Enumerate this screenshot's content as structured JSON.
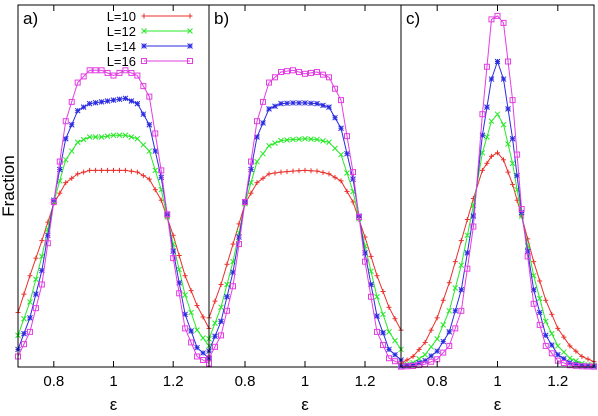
{
  "chart_data": {
    "type": "line",
    "ylabel": "Fraction",
    "legend": {
      "placement": "top-left of panel a",
      "entries": [
        {
          "label": "L=10",
          "color": "#e8302b",
          "marker": "plus"
        },
        {
          "label": "L=12",
          "color": "#27e827",
          "marker": "cross"
        },
        {
          "label": "L=14",
          "color": "#2b2be0",
          "marker": "star"
        },
        {
          "label": "L=16",
          "color": "#e23ee2",
          "marker": "square"
        }
      ]
    },
    "panels": [
      {
        "label": "a)",
        "xlabel": "ε",
        "xlim": [
          0.68,
          1.32
        ],
        "ylim": [
          0,
          1
        ],
        "xticks": [
          "0.8",
          "1",
          "1.2"
        ],
        "xtick_values": [
          0.8,
          1.0,
          1.2
        ],
        "series": [
          {
            "name": "L=10",
            "x": [
              0.68,
              0.72,
              0.76,
              0.8,
              0.84,
              0.88,
              0.92,
              0.96,
              1.0,
              1.04,
              1.08,
              1.12,
              1.16,
              1.2,
              1.24,
              1.28,
              1.32
            ],
            "y": [
              0.155,
              0.26,
              0.36,
              0.465,
              0.525,
              0.55,
              0.56,
              0.56,
              0.56,
              0.56,
              0.555,
              0.535,
              0.475,
              0.375,
              0.26,
              0.175,
              0.11
            ]
          },
          {
            "name": "L=12",
            "x": [
              0.68,
              0.72,
              0.76,
              0.8,
              0.84,
              0.88,
              0.92,
              0.96,
              1.0,
              1.04,
              1.08,
              1.12,
              1.16,
              1.2,
              1.24,
              1.28,
              1.32
            ],
            "y": [
              0.09,
              0.185,
              0.315,
              0.47,
              0.59,
              0.64,
              0.655,
              0.655,
              0.66,
              0.66,
              0.65,
              0.615,
              0.505,
              0.35,
              0.205,
              0.105,
              0.06
            ]
          },
          {
            "name": "L=14",
            "x": [
              0.68,
              0.72,
              0.76,
              0.8,
              0.84,
              0.88,
              0.92,
              0.96,
              1.0,
              1.04,
              1.08,
              1.12,
              1.16,
              1.2,
              1.24,
              1.28,
              1.32
            ],
            "y": [
              0.05,
              0.14,
              0.275,
              0.475,
              0.65,
              0.73,
              0.75,
              0.755,
              0.76,
              0.765,
              0.75,
              0.69,
              0.54,
              0.33,
              0.15,
              0.055,
              0.025
            ]
          },
          {
            "name": "L=16",
            "x": [
              0.68,
              0.72,
              0.76,
              0.8,
              0.84,
              0.88,
              0.92,
              0.96,
              1.0,
              1.04,
              1.08,
              1.12,
              1.16,
              1.2,
              1.24,
              1.28,
              1.32
            ],
            "y": [
              0.03,
              0.1,
              0.235,
              0.47,
              0.7,
              0.81,
              0.845,
              0.845,
              0.83,
              0.845,
              0.83,
              0.77,
              0.56,
              0.31,
              0.11,
              0.03,
              0.01
            ]
          }
        ]
      },
      {
        "label": "b)",
        "xlabel": "ε",
        "xlim": [
          0.68,
          1.32
        ],
        "ylim": [
          0,
          1
        ],
        "xticks": [
          "0.8",
          "1",
          "1.2"
        ],
        "xtick_values": [
          0.8,
          1.0,
          1.2
        ],
        "series": [
          {
            "name": "L=10",
            "x": [
              0.68,
              0.72,
              0.76,
              0.8,
              0.84,
              0.88,
              0.92,
              0.96,
              1.0,
              1.04,
              1.08,
              1.12,
              1.16,
              1.2,
              1.24,
              1.28,
              1.32
            ],
            "y": [
              0.14,
              0.235,
              0.35,
              0.465,
              0.525,
              0.55,
              0.555,
              0.558,
              0.56,
              0.558,
              0.55,
              0.53,
              0.47,
              0.37,
              0.26,
              0.17,
              0.105
            ]
          },
          {
            "name": "L=12",
            "x": [
              0.68,
              0.72,
              0.76,
              0.8,
              0.84,
              0.88,
              0.92,
              0.96,
              1.0,
              1.04,
              1.08,
              1.12,
              1.16,
              1.2,
              1.24,
              1.28,
              1.32
            ],
            "y": [
              0.08,
              0.17,
              0.3,
              0.465,
              0.585,
              0.63,
              0.645,
              0.648,
              0.65,
              0.648,
              0.64,
              0.605,
              0.5,
              0.345,
              0.2,
              0.1,
              0.05
            ]
          },
          {
            "name": "L=14",
            "x": [
              0.68,
              0.72,
              0.76,
              0.8,
              0.84,
              0.88,
              0.92,
              0.96,
              1.0,
              1.04,
              1.08,
              1.12,
              1.16,
              1.2,
              1.24,
              1.28,
              1.32
            ],
            "y": [
              0.045,
              0.13,
              0.27,
              0.47,
              0.655,
              0.735,
              0.75,
              0.752,
              0.752,
              0.75,
              0.74,
              0.68,
              0.535,
              0.325,
              0.145,
              0.05,
              0.02
            ]
          },
          {
            "name": "L=16",
            "x": [
              0.68,
              0.72,
              0.76,
              0.8,
              0.84,
              0.88,
              0.92,
              0.96,
              1.0,
              1.04,
              1.08,
              1.12,
              1.16,
              1.2,
              1.24,
              1.28,
              1.32
            ],
            "y": [
              0.025,
              0.09,
              0.23,
              0.47,
              0.7,
              0.81,
              0.84,
              0.845,
              0.835,
              0.84,
              0.825,
              0.76,
              0.555,
              0.3,
              0.1,
              0.025,
              0.008
            ]
          }
        ]
      },
      {
        "label": "c)",
        "xlabel": "ε",
        "xlim": [
          0.68,
          1.32
        ],
        "ylim": [
          0,
          1
        ],
        "xticks": [
          "0.8",
          "1",
          "1.2"
        ],
        "xtick_values": [
          0.8,
          1.0,
          1.2
        ],
        "series": [
          {
            "name": "L=10",
            "x": [
              0.68,
              0.72,
              0.76,
              0.8,
              0.84,
              0.88,
              0.92,
              0.95,
              0.98,
              1.0,
              1.02,
              1.05,
              1.08,
              1.12,
              1.16,
              1.2,
              1.24,
              1.28,
              1.32
            ],
            "y": [
              0.01,
              0.03,
              0.07,
              0.14,
              0.24,
              0.36,
              0.48,
              0.56,
              0.6,
              0.61,
              0.59,
              0.52,
              0.43,
              0.3,
              0.19,
              0.11,
              0.06,
              0.03,
              0.015
            ]
          },
          {
            "name": "L=12",
            "x": [
              0.68,
              0.72,
              0.76,
              0.8,
              0.84,
              0.88,
              0.92,
              0.95,
              0.98,
              1.0,
              1.02,
              1.05,
              1.08,
              1.12,
              1.16,
              1.2,
              1.24,
              1.28,
              1.32
            ],
            "y": [
              0.004,
              0.012,
              0.035,
              0.08,
              0.16,
              0.29,
              0.46,
              0.61,
              0.7,
              0.72,
              0.69,
              0.58,
              0.43,
              0.26,
              0.13,
              0.06,
              0.025,
              0.01,
              0.004
            ]
          },
          {
            "name": "L=14",
            "x": [
              0.68,
              0.72,
              0.76,
              0.8,
              0.84,
              0.88,
              0.92,
              0.95,
              0.98,
              1.0,
              1.02,
              1.05,
              1.08,
              1.12,
              1.16,
              1.2,
              1.24,
              1.28,
              1.32
            ],
            "y": [
              0.002,
              0.006,
              0.018,
              0.045,
              0.1,
              0.22,
              0.43,
              0.66,
              0.82,
              0.87,
              0.82,
              0.65,
              0.44,
              0.22,
              0.09,
              0.035,
              0.012,
              0.004,
              0.002
            ]
          },
          {
            "name": "L=16",
            "x": [
              0.68,
              0.72,
              0.76,
              0.8,
              0.84,
              0.88,
              0.92,
              0.95,
              0.98,
              1.0,
              1.02,
              1.05,
              1.08,
              1.12,
              1.16,
              1.2,
              1.24,
              1.28,
              1.32
            ],
            "y": [
              0.001,
              0.003,
              0.008,
              0.022,
              0.06,
              0.16,
              0.4,
              0.72,
              0.99,
              1.0,
              0.98,
              0.76,
              0.45,
              0.18,
              0.06,
              0.018,
              0.005,
              0.002,
              0.001
            ]
          }
        ]
      }
    ]
  }
}
